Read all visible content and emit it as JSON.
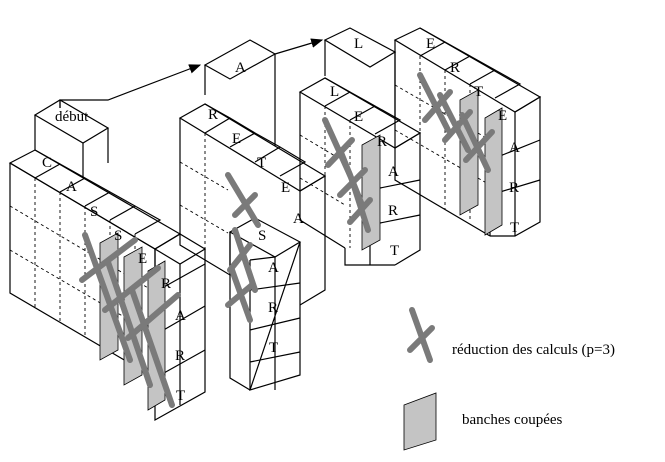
{
  "start_label": "début",
  "blocks": [
    {
      "letters": [
        "C",
        "A",
        "S",
        "S",
        "E",
        "R",
        "A",
        "R",
        "T"
      ]
    },
    {
      "letters": [
        "A",
        "R",
        "E",
        "T",
        "E",
        "A",
        "S",
        "A",
        "R",
        "T"
      ]
    },
    {
      "letters": [
        "L",
        "L",
        "E",
        "R",
        "A",
        "R",
        "T"
      ]
    },
    {
      "letters": [
        "E",
        "R",
        "T",
        "E",
        "A",
        "R",
        "T"
      ]
    }
  ],
  "legend": {
    "reduction": "réduction des calculs (p=3)",
    "cut": "banches coupées"
  },
  "colors": {
    "shade": "#c4c4c4",
    "cross": "#7a7a7a",
    "line": "#000000"
  }
}
